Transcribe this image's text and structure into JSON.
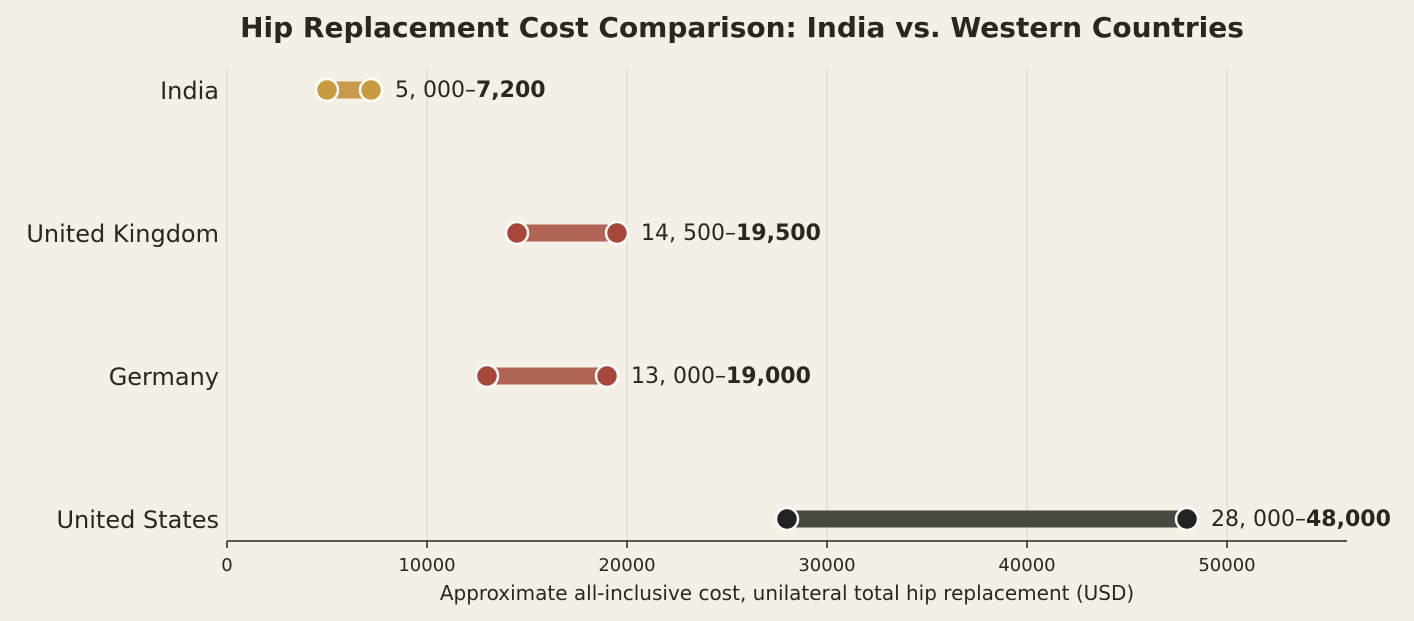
{
  "chart_data": {
    "type": "dumbbell",
    "title": "Hip Replacement Cost Comparison: India vs. Western Countries",
    "xlabel": "Approximate all-inclusive cost, unilateral total hip replacement (USD)",
    "xlim": [
      0,
      56000
    ],
    "xticks": [
      0,
      10000,
      20000,
      30000,
      40000,
      50000
    ],
    "xtick_labels": [
      "0",
      "10000",
      "20000",
      "30000",
      "40000",
      "50000"
    ],
    "grid": "vertical",
    "categories": [
      "India",
      "United Kingdom",
      "Germany",
      "United States"
    ],
    "ranges": [
      {
        "category": "India",
        "low": 5000,
        "high": 7200,
        "label_low": "5, 000–",
        "label_high": "7,200",
        "bar_color": "#c99a4c",
        "dot_color": "#c99a3e"
      },
      {
        "category": "United Kingdom",
        "low": 14500,
        "high": 19500,
        "label_low": "14, 500–",
        "label_high": "19,500",
        "bar_color": "#b06554",
        "dot_color": "#a6473a"
      },
      {
        "category": "Germany",
        "low": 13000,
        "high": 19000,
        "label_low": "13, 000–",
        "label_high": "19,000",
        "bar_color": "#b06554",
        "dot_color": "#a6473a"
      },
      {
        "category": "United States",
        "low": 28000,
        "high": 48000,
        "label_low": "28, 000–",
        "label_high": "48,000",
        "bar_color": "#4a4741",
        "dot_color": "#24221e"
      }
    ]
  }
}
